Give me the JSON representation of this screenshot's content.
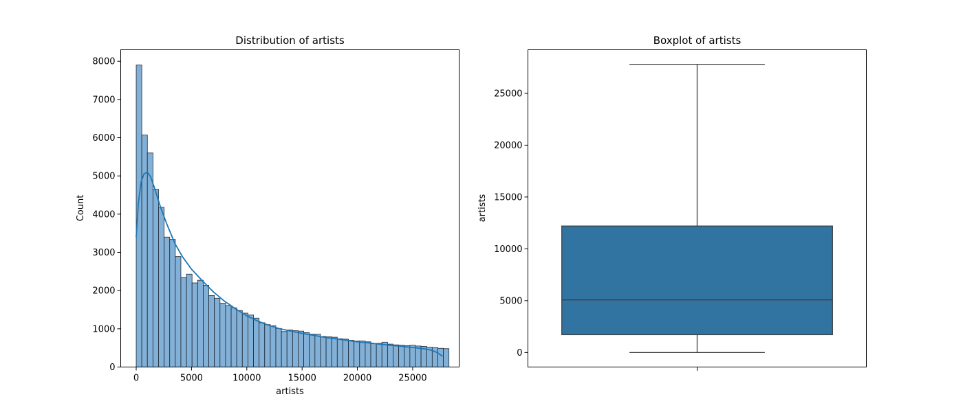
{
  "chart_data": [
    {
      "type": "histogram",
      "title": "Distribution of artists",
      "xlabel": "artists",
      "ylabel": "Count",
      "xlim": [
        -1400,
        29200
      ],
      "ylim": [
        0,
        8300
      ],
      "xticks": [
        0,
        5000,
        10000,
        15000,
        20000,
        25000
      ],
      "yticks": [
        0,
        1000,
        2000,
        3000,
        4000,
        5000,
        6000,
        7000,
        8000
      ],
      "bin_start": 0,
      "bin_width": 505,
      "counts": [
        7900,
        6070,
        5600,
        4650,
        4180,
        3400,
        3340,
        2890,
        2340,
        2430,
        2200,
        2270,
        2140,
        1870,
        1800,
        1670,
        1610,
        1550,
        1480,
        1410,
        1360,
        1280,
        1160,
        1110,
        1080,
        1010,
        930,
        970,
        950,
        940,
        900,
        860,
        860,
        800,
        790,
        780,
        740,
        730,
        700,
        680,
        680,
        660,
        610,
        620,
        650,
        600,
        580,
        570,
        560,
        570,
        550,
        540,
        520,
        510,
        490,
        480
      ],
      "kde": [
        [
          0,
          3400
        ],
        [
          200,
          4300
        ],
        [
          450,
          4850
        ],
        [
          700,
          5050
        ],
        [
          1000,
          5100
        ],
        [
          1300,
          4980
        ],
        [
          1700,
          4650
        ],
        [
          2200,
          4180
        ],
        [
          2800,
          3720
        ],
        [
          3500,
          3230
        ],
        [
          4200,
          2880
        ],
        [
          5000,
          2560
        ],
        [
          6000,
          2250
        ],
        [
          7000,
          1960
        ],
        [
          8000,
          1720
        ],
        [
          9000,
          1520
        ],
        [
          10000,
          1340
        ],
        [
          11000,
          1200
        ],
        [
          12000,
          1090
        ],
        [
          13000,
          1000
        ],
        [
          14000,
          940
        ],
        [
          15000,
          880
        ],
        [
          16000,
          830
        ],
        [
          17000,
          780
        ],
        [
          18000,
          740
        ],
        [
          19000,
          700
        ],
        [
          20000,
          660
        ],
        [
          21000,
          630
        ],
        [
          22000,
          600
        ],
        [
          23000,
          570
        ],
        [
          24000,
          540
        ],
        [
          25000,
          510
        ],
        [
          26000,
          480
        ],
        [
          26700,
          440
        ],
        [
          27200,
          380
        ],
        [
          27700,
          280
        ]
      ],
      "colors": {
        "bar_fill": "#82b0d6",
        "bar_edge": "#1c2733",
        "kde": "#1f77b4"
      }
    },
    {
      "type": "boxplot",
      "title": "Boxplot of artists",
      "ylabel": "artists",
      "ylim": [
        -1400,
        29200
      ],
      "yticks": [
        0,
        5000,
        10000,
        15000,
        20000,
        25000
      ],
      "whisker_low": 0,
      "q1": 1720,
      "median": 5080,
      "q3": 12200,
      "whisker_high": 27800,
      "colors": {
        "box_fill": "#3274a1",
        "line": "#3f3f3f"
      }
    }
  ]
}
